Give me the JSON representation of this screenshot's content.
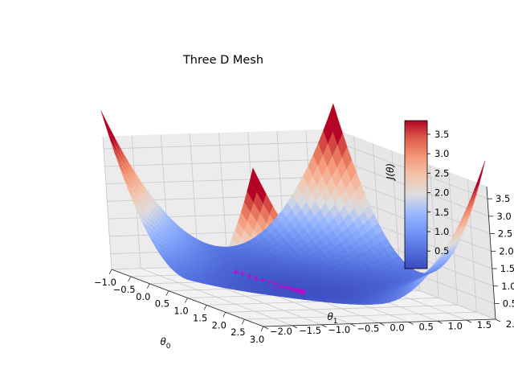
{
  "chart_data": {
    "type": "surface3d",
    "title": "Three D Mesh",
    "xlabel": "θ0",
    "ylabel": "θ1",
    "zlabel": "J(θ)",
    "xlim": [
      -1.0,
      3.0
    ],
    "ylim": [
      -2.0,
      2.0
    ],
    "zlim": [
      0.05,
      3.85
    ],
    "x_ticks": [
      "−1.0",
      "−0.5",
      "0.0",
      "0.5",
      "1.0",
      "1.5",
      "2.0",
      "2.5",
      "3.0"
    ],
    "y_ticks": [
      "−2.0",
      "−1.5",
      "−1.0",
      "−0.5",
      "0.0",
      "0.5",
      "1.0",
      "1.5",
      "2.0"
    ],
    "z_ticks": [
      "0.5",
      "1.0",
      "1.5",
      "2.0",
      "2.5",
      "3.0",
      "3.5"
    ],
    "surface": {
      "description": "quadratic bowl, minimum near theta0=1, theta1=0",
      "colormap": "coolwarm",
      "zmin": 0.05,
      "zmax": 3.85
    },
    "colorbar": {
      "ticks": [
        "0.5",
        "1.0",
        "1.5",
        "2.0",
        "2.5",
        "3.0",
        "3.5"
      ],
      "tick_values": [
        0.5,
        1.0,
        1.5,
        2.0,
        2.5,
        3.0,
        3.5
      ],
      "range": [
        0.05,
        3.85
      ]
    },
    "trajectory": {
      "marker": "+",
      "color": "#cc00cc",
      "points": [
        [
          0.0,
          -0.5,
          0.3
        ],
        [
          0.1,
          -0.45,
          0.28
        ],
        [
          0.2,
          -0.4,
          0.26
        ],
        [
          0.3,
          -0.35,
          0.24
        ],
        [
          0.4,
          -0.3,
          0.22
        ],
        [
          0.5,
          -0.25,
          0.2
        ],
        [
          0.58,
          -0.2,
          0.18
        ],
        [
          0.66,
          -0.16,
          0.16
        ],
        [
          0.73,
          -0.12,
          0.15
        ],
        [
          0.79,
          -0.09,
          0.14
        ],
        [
          0.84,
          -0.06,
          0.13
        ],
        [
          0.88,
          -0.04,
          0.12
        ],
        [
          0.92,
          -0.02,
          0.12
        ],
        [
          0.95,
          -0.01,
          0.11
        ],
        [
          0.98,
          0.0,
          0.11
        ],
        [
          1.0,
          0.0,
          0.11
        ]
      ]
    }
  }
}
